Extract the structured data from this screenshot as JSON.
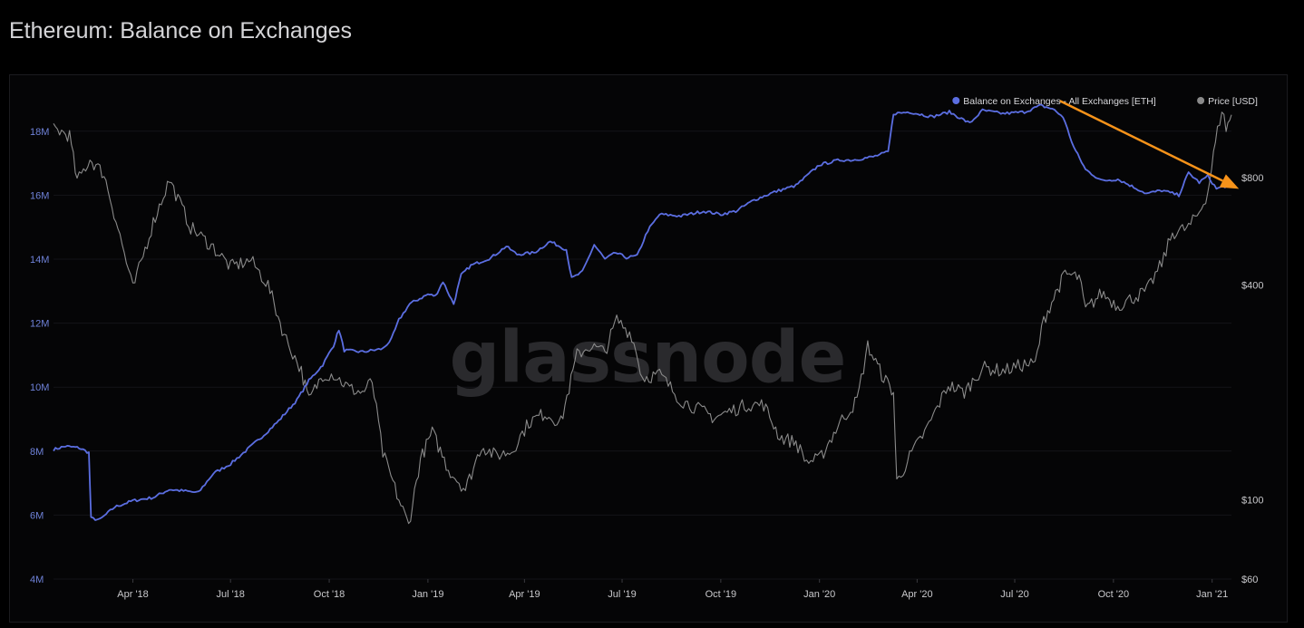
{
  "page": {
    "title": "Ethereum: Balance on Exchanges"
  },
  "watermark": "glassnode",
  "colors": {
    "background": "#000000",
    "balance_line": "#5b6ee1",
    "price_line": "#8a8a8a",
    "annotation_arrow": "#f7931a",
    "grid": "#141418"
  },
  "legend": {
    "position": "top-right",
    "items": [
      {
        "label": "Balance on Exchanges - All Exchanges [ETH]",
        "color": "#5b6ee1"
      },
      {
        "label": "Price [USD]",
        "color": "#8a8a8a"
      }
    ]
  },
  "chart_data": {
    "type": "line",
    "title": "Ethereum: Balance on Exchanges",
    "x_range": [
      "2018-01-17",
      "2021-01-19"
    ],
    "x_ticks": [
      "Apr '18",
      "Jul '18",
      "Oct '18",
      "Jan '19",
      "Apr '19",
      "Jul '19",
      "Oct '19",
      "Jan '20",
      "Apr '20",
      "Jul '20",
      "Oct '20",
      "Jan '21"
    ],
    "x_tick_dates": [
      "2018-04-01",
      "2018-07-01",
      "2018-10-01",
      "2019-01-01",
      "2019-04-01",
      "2019-07-01",
      "2019-10-01",
      "2020-01-01",
      "2020-04-01",
      "2020-07-01",
      "2020-10-01",
      "2021-01-01"
    ],
    "y_left": {
      "ticks": [
        "4M",
        "6M",
        "8M",
        "10M",
        "12M",
        "14M",
        "16M",
        "18M"
      ],
      "tick_values": [
        4,
        6,
        8,
        10,
        12,
        14,
        16,
        18
      ],
      "unit": "M ETH",
      "range": [
        4,
        18.9
      ],
      "scale": "linear"
    },
    "y_right": {
      "ticks": [
        "$60",
        "$100",
        "$400",
        "$800"
      ],
      "tick_values": [
        60,
        100,
        400,
        800
      ],
      "unit": "USD",
      "range": [
        60,
        1300
      ],
      "scale": "log"
    },
    "grid": true,
    "series": [
      {
        "name": "Balance on Exchanges - All Exchanges [ETH]",
        "axis": "left",
        "color": "#5b6ee1",
        "points": [
          [
            "2018-01-17",
            8.05
          ],
          [
            "2018-01-28",
            8.15
          ],
          [
            "2018-02-10",
            8.1
          ],
          [
            "2018-02-19",
            7.95
          ],
          [
            "2018-02-21",
            5.9
          ],
          [
            "2018-03-01",
            5.85
          ],
          [
            "2018-03-15",
            6.25
          ],
          [
            "2018-04-01",
            6.45
          ],
          [
            "2018-04-20",
            6.55
          ],
          [
            "2018-05-05",
            6.8
          ],
          [
            "2018-05-20",
            6.75
          ],
          [
            "2018-06-01",
            6.7
          ],
          [
            "2018-06-15",
            7.3
          ],
          [
            "2018-07-01",
            7.6
          ],
          [
            "2018-07-15",
            8.0
          ],
          [
            "2018-08-01",
            8.5
          ],
          [
            "2018-08-15",
            8.95
          ],
          [
            "2018-09-01",
            9.6
          ],
          [
            "2018-09-12",
            10.2
          ],
          [
            "2018-09-25",
            10.7
          ],
          [
            "2018-10-05",
            11.3
          ],
          [
            "2018-10-10",
            11.8
          ],
          [
            "2018-10-15",
            11.15
          ],
          [
            "2018-11-01",
            11.1
          ],
          [
            "2018-11-20",
            11.2
          ],
          [
            "2018-11-28",
            11.5
          ],
          [
            "2018-12-05",
            12.1
          ],
          [
            "2018-12-15",
            12.6
          ],
          [
            "2019-01-01",
            12.9
          ],
          [
            "2019-01-08",
            12.85
          ],
          [
            "2019-01-15",
            13.3
          ],
          [
            "2019-01-25",
            12.6
          ],
          [
            "2019-02-01",
            13.5
          ],
          [
            "2019-02-10",
            13.8
          ],
          [
            "2019-03-01",
            14.05
          ],
          [
            "2019-03-15",
            14.4
          ],
          [
            "2019-03-25",
            14.15
          ],
          [
            "2019-04-10",
            14.2
          ],
          [
            "2019-04-25",
            14.55
          ],
          [
            "2019-05-10",
            14.3
          ],
          [
            "2019-05-15",
            13.4
          ],
          [
            "2019-05-25",
            13.6
          ],
          [
            "2019-06-05",
            14.45
          ],
          [
            "2019-06-15",
            14.0
          ],
          [
            "2019-06-25",
            14.2
          ],
          [
            "2019-07-05",
            14.05
          ],
          [
            "2019-07-15",
            14.1
          ],
          [
            "2019-07-25",
            14.9
          ],
          [
            "2019-08-05",
            15.4
          ],
          [
            "2019-08-25",
            15.35
          ],
          [
            "2019-09-15",
            15.5
          ],
          [
            "2019-10-01",
            15.4
          ],
          [
            "2019-10-15",
            15.5
          ],
          [
            "2019-11-01",
            15.85
          ],
          [
            "2019-11-20",
            16.1
          ],
          [
            "2019-12-10",
            16.3
          ],
          [
            "2020-01-01",
            16.95
          ],
          [
            "2020-01-20",
            17.1
          ],
          [
            "2020-02-01",
            17.1
          ],
          [
            "2020-02-20",
            17.2
          ],
          [
            "2020-03-05",
            17.35
          ],
          [
            "2020-03-10",
            18.55
          ],
          [
            "2020-03-25",
            18.6
          ],
          [
            "2020-04-15",
            18.45
          ],
          [
            "2020-05-01",
            18.6
          ],
          [
            "2020-05-20",
            18.25
          ],
          [
            "2020-06-01",
            18.65
          ],
          [
            "2020-06-20",
            18.55
          ],
          [
            "2020-07-10",
            18.6
          ],
          [
            "2020-07-25",
            18.8
          ],
          [
            "2020-08-05",
            18.7
          ],
          [
            "2020-08-15",
            18.45
          ],
          [
            "2020-08-25",
            17.5
          ],
          [
            "2020-09-05",
            16.8
          ],
          [
            "2020-09-20",
            16.45
          ],
          [
            "2020-10-05",
            16.5
          ],
          [
            "2020-10-20",
            16.25
          ],
          [
            "2020-11-01",
            16.05
          ],
          [
            "2020-11-15",
            16.15
          ],
          [
            "2020-12-01",
            16.0
          ],
          [
            "2020-12-10",
            16.7
          ],
          [
            "2020-12-20",
            16.4
          ],
          [
            "2020-12-28",
            16.6
          ],
          [
            "2021-01-05",
            16.2
          ],
          [
            "2021-01-15",
            16.3
          ],
          [
            "2021-01-19",
            16.35
          ]
        ]
      },
      {
        "name": "Price [USD]",
        "axis": "right",
        "color": "#8a8a8a",
        "points": [
          [
            "2018-01-17",
            1100
          ],
          [
            "2018-02-01",
            1050
          ],
          [
            "2018-02-08",
            780
          ],
          [
            "2018-02-20",
            900
          ],
          [
            "2018-03-05",
            820
          ],
          [
            "2018-03-20",
            550
          ],
          [
            "2018-04-01",
            390
          ],
          [
            "2018-04-20",
            600
          ],
          [
            "2018-05-05",
            790
          ],
          [
            "2018-05-25",
            580
          ],
          [
            "2018-06-15",
            510
          ],
          [
            "2018-07-01",
            450
          ],
          [
            "2018-07-20",
            470
          ],
          [
            "2018-08-05",
            400
          ],
          [
            "2018-08-20",
            290
          ],
          [
            "2018-09-05",
            230
          ],
          [
            "2018-09-12",
            190
          ],
          [
            "2018-09-25",
            225
          ],
          [
            "2018-10-05",
            225
          ],
          [
            "2018-10-20",
            205
          ],
          [
            "2018-11-01",
            200
          ],
          [
            "2018-11-10",
            215
          ],
          [
            "2018-11-20",
            135
          ],
          [
            "2018-12-05",
            100
          ],
          [
            "2018-12-14",
            85
          ],
          [
            "2018-12-25",
            130
          ],
          [
            "2019-01-05",
            155
          ],
          [
            "2019-01-20",
            122
          ],
          [
            "2019-02-05",
            107
          ],
          [
            "2019-02-20",
            142
          ],
          [
            "2019-03-05",
            133
          ],
          [
            "2019-03-20",
            137
          ],
          [
            "2019-04-05",
            165
          ],
          [
            "2019-04-20",
            175
          ],
          [
            "2019-05-05",
            165
          ],
          [
            "2019-05-20",
            255
          ],
          [
            "2019-06-01",
            270
          ],
          [
            "2019-06-15",
            260
          ],
          [
            "2019-06-26",
            320
          ],
          [
            "2019-07-10",
            290
          ],
          [
            "2019-07-20",
            220
          ],
          [
            "2019-08-05",
            225
          ],
          [
            "2019-08-25",
            190
          ],
          [
            "2019-09-10",
            180
          ],
          [
            "2019-09-25",
            170
          ],
          [
            "2019-10-05",
            175
          ],
          [
            "2019-10-25",
            185
          ],
          [
            "2019-11-10",
            185
          ],
          [
            "2019-11-25",
            150
          ],
          [
            "2019-12-10",
            145
          ],
          [
            "2019-12-20",
            128
          ],
          [
            "2020-01-01",
            130
          ],
          [
            "2020-01-20",
            165
          ],
          [
            "2020-02-05",
            190
          ],
          [
            "2020-02-15",
            270
          ],
          [
            "2020-02-28",
            225
          ],
          [
            "2020-03-10",
            200
          ],
          [
            "2020-03-13",
            112
          ],
          [
            "2020-03-25",
            132
          ],
          [
            "2020-04-10",
            158
          ],
          [
            "2020-04-30",
            210
          ],
          [
            "2020-05-15",
            200
          ],
          [
            "2020-06-01",
            235
          ],
          [
            "2020-06-20",
            230
          ],
          [
            "2020-07-10",
            240
          ],
          [
            "2020-07-20",
            240
          ],
          [
            "2020-07-28",
            320
          ],
          [
            "2020-08-10",
            390
          ],
          [
            "2020-08-17",
            430
          ],
          [
            "2020-08-30",
            420
          ],
          [
            "2020-09-05",
            340
          ],
          [
            "2020-09-20",
            380
          ],
          [
            "2020-10-05",
            350
          ],
          [
            "2020-10-20",
            370
          ],
          [
            "2020-11-01",
            385
          ],
          [
            "2020-11-15",
            460
          ],
          [
            "2020-11-25",
            560
          ],
          [
            "2020-12-10",
            580
          ],
          [
            "2020-12-20",
            640
          ],
          [
            "2020-12-28",
            730
          ],
          [
            "2021-01-04",
            1000
          ],
          [
            "2021-01-10",
            1250
          ],
          [
            "2021-01-14",
            1100
          ],
          [
            "2021-01-19",
            1200
          ]
        ]
      }
    ],
    "annotations": [
      {
        "type": "arrow",
        "color": "#f7931a",
        "from": [
          "2020-08-12",
          18.95
        ],
        "to": [
          "2021-01-26",
          16.2
        ]
      }
    ]
  }
}
